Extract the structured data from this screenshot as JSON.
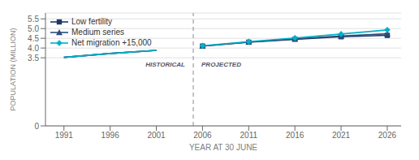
{
  "chart_data": {
    "type": "line",
    "xlabel": "YEAR AT 30 JUNE",
    "ylabel": "POPULATION (MILLION)",
    "x": [
      1991,
      1996,
      2001,
      2006,
      2011,
      2016,
      2021,
      2026
    ],
    "xlim": [
      1989,
      2027.5
    ],
    "xticks": [
      1991,
      1996,
      2001,
      2006,
      2011,
      2016,
      2021,
      2026
    ],
    "ylim": [
      0,
      5.8
    ],
    "yticks": [
      0,
      3.5,
      {
        "value": 4.0,
        "label": "4.0"
      },
      4.5,
      {
        "value": 5.0,
        "label": "5.0"
      },
      5.5
    ],
    "grid": "y",
    "legend": "upper left",
    "annotations": [
      {
        "type": "vline",
        "x": 2005,
        "line_style": "dashed"
      },
      {
        "text": "HISTORICAL",
        "x": 2005,
        "y": 3.12,
        "position": "left"
      },
      {
        "text": "PROJECTED",
        "x": 2005,
        "y": 3.12,
        "position": "right"
      }
    ],
    "series": [
      {
        "name": "Low fertility",
        "color": "#1f3864",
        "marker": "square",
        "line_style": "solid",
        "values": [
          3.52,
          3.72,
          3.88,
          4.1,
          4.3,
          4.45,
          4.58,
          4.65
        ]
      },
      {
        "name": "Medium series",
        "color": "#2e4d7b",
        "marker": "triangle",
        "line_style": "solid",
        "values": [
          3.52,
          3.72,
          3.88,
          4.1,
          4.31,
          4.47,
          4.62,
          4.73
        ]
      },
      {
        "name": "Net migration +15,000",
        "color": "#00b0c8",
        "marker": "diamond",
        "line_style": "solid",
        "values": [
          3.52,
          3.72,
          3.88,
          4.12,
          4.33,
          4.52,
          4.72,
          4.93
        ]
      }
    ]
  }
}
